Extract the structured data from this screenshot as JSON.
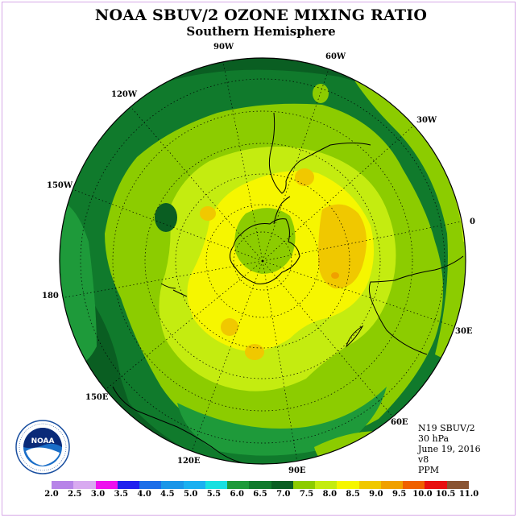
{
  "title": "NOAA SBUV/2 OZONE MIXING RATIO",
  "subtitle": "Southern Hemisphere",
  "info": {
    "instrument": "N19 SBUV/2",
    "level": "30 hPa",
    "date": "June 19, 2016",
    "version": "v8",
    "units": "PPM"
  },
  "logo": {
    "text": "NOAA",
    "ring_text": "NATIONAL OCEANIC AND ATMOSPHERIC ADMINISTRATION · U.S. DEPARTMENT OF COMMERCE"
  },
  "longitude_labels": [
    {
      "name": "lon-90w",
      "text": "90W"
    },
    {
      "name": "lon-60w",
      "text": "60W"
    },
    {
      "name": "lon-120w",
      "text": "120W"
    },
    {
      "name": "lon-30w",
      "text": "30W"
    },
    {
      "name": "lon-150w",
      "text": "150W"
    },
    {
      "name": "lon-0",
      "text": "0"
    },
    {
      "name": "lon-180",
      "text": "180"
    },
    {
      "name": "lon-30e",
      "text": "30E"
    },
    {
      "name": "lon-150e",
      "text": "150E"
    },
    {
      "name": "lon-60e",
      "text": "60E"
    },
    {
      "name": "lon-120e",
      "text": "120E"
    },
    {
      "name": "lon-90e",
      "text": "90E"
    }
  ],
  "colorbar": {
    "ticks": [
      "2.0",
      "2.5",
      "3.0",
      "3.5",
      "4.0",
      "4.5",
      "5.0",
      "5.5",
      "6.0",
      "6.5",
      "7.0",
      "7.5",
      "8.0",
      "8.5",
      "9.0",
      "9.5",
      "10.0",
      "10.5",
      "11.0"
    ],
    "colors": [
      "#b784e8",
      "#d8aaf0",
      "#ee11ee",
      "#2020ee",
      "#1c6ee8",
      "#1a96e8",
      "#1ab0f0",
      "#18e0e0",
      "#1e9a3a",
      "#107a2c",
      "#0a5e22",
      "#8ccc00",
      "#c4ec10",
      "#f6f600",
      "#f0c800",
      "#f0a000",
      "#f06000",
      "#e81010",
      "#8a5432"
    ]
  },
  "levels": {
    "outer": "#0a5e22",
    "l65": "#107a2c",
    "l70": "#1e9a3a",
    "l75": "#8ccc00",
    "l80": "#c4ec10",
    "l85": "#f6f600",
    "l90": "#f0c800",
    "l95": "#f0a000"
  }
}
